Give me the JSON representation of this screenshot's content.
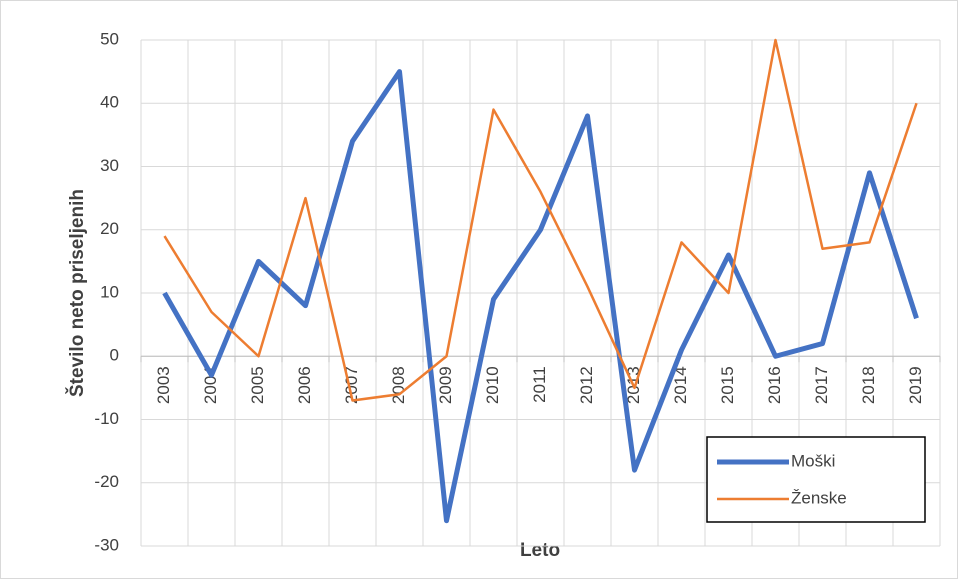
{
  "chart_data": {
    "type": "line",
    "categories": [
      "2003",
      "2004",
      "2005",
      "2006",
      "2007",
      "2008",
      "2009",
      "2010",
      "2011",
      "2012",
      "2013",
      "2014",
      "2015",
      "2016",
      "2017",
      "2018",
      "2019"
    ],
    "series": [
      {
        "name": "Moški",
        "color": "#4472c4",
        "values": [
          10,
          -3,
          15,
          8,
          34,
          45,
          -26,
          9,
          20,
          38,
          -18,
          1,
          16,
          0,
          2,
          29,
          6
        ]
      },
      {
        "name": "Ženske",
        "color": "#ed7d31",
        "values": [
          19,
          7,
          0,
          25,
          -7,
          -6,
          0,
          39,
          26,
          11,
          -5,
          18,
          10,
          50,
          17,
          18,
          40
        ]
      }
    ],
    "x_label": "Leto",
    "y_label": "Število neto priseljenih",
    "ylim": [
      -30,
      50
    ],
    "yticks": [
      -30,
      -20,
      -10,
      0,
      10,
      20,
      30,
      40,
      50
    ],
    "grid": true,
    "legend": "bottom-right"
  }
}
